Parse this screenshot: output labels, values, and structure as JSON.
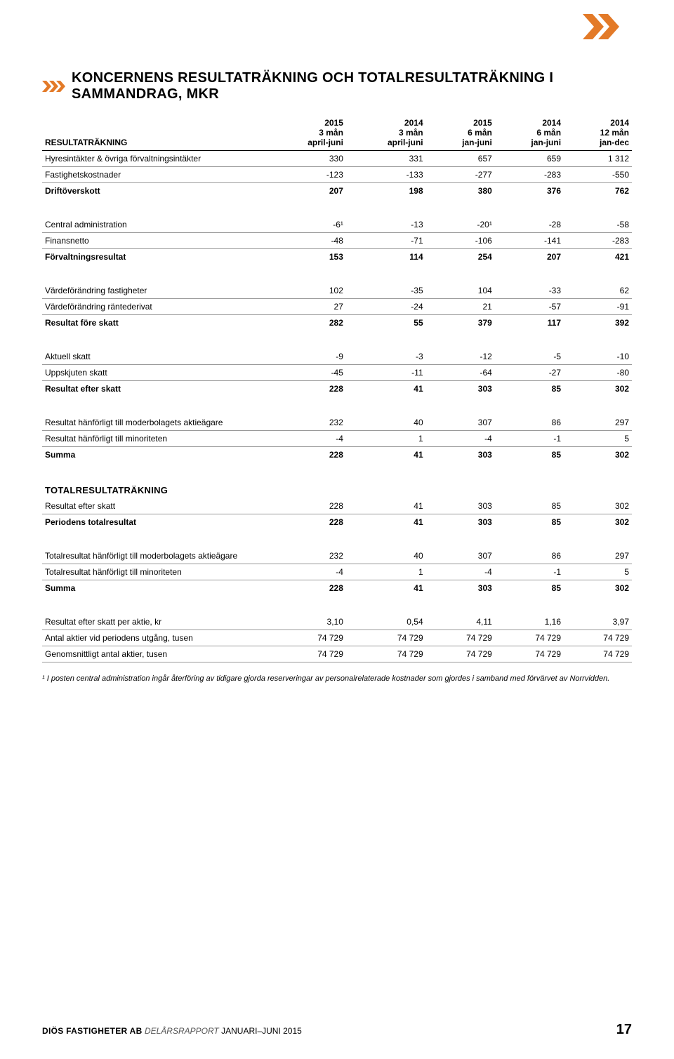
{
  "colors": {
    "accent": "#e37a28",
    "text": "#000000",
    "rule": "#999999",
    "rule_strong": "#000000",
    "muted": "#555555",
    "background": "#ffffff"
  },
  "title": "KONCERNENS RESULTATRÄKNING OCH TOTALRESULTATRÄKNING I SAMMANDRAG, MKR",
  "columns": [
    {
      "header": "RESULTATRÄKNING"
    },
    {
      "year": "2015",
      "period": "3 mån",
      "range": "april-juni"
    },
    {
      "year": "2014",
      "period": "3 mån",
      "range": "april-juni"
    },
    {
      "year": "2015",
      "period": "6 mån",
      "range": "jan-juni"
    },
    {
      "year": "2014",
      "period": "6 mån",
      "range": "jan-juni"
    },
    {
      "year": "2014",
      "period": "12 mån",
      "range": "jan-dec"
    }
  ],
  "rows": [
    {
      "type": "data",
      "label": "Hyresintäkter & övriga förvaltningsintäkter",
      "v": [
        "330",
        "331",
        "657",
        "659",
        "1 312"
      ],
      "line": true
    },
    {
      "type": "data",
      "label": "Fastighetskostnader",
      "v": [
        "-123",
        "-133",
        "-277",
        "-283",
        "-550"
      ],
      "line": true
    },
    {
      "type": "data",
      "label": "Driftöverskott",
      "v": [
        "207",
        "198",
        "380",
        "376",
        "762"
      ],
      "bold": true
    },
    {
      "type": "spacer"
    },
    {
      "type": "data",
      "label": "Central administration",
      "v": [
        "-6¹",
        "-13",
        "-20¹",
        "-28",
        "-58"
      ],
      "line": true
    },
    {
      "type": "data",
      "label": "Finansnetto",
      "v": [
        "-48",
        "-71",
        "-106",
        "-141",
        "-283"
      ],
      "line": true
    },
    {
      "type": "data",
      "label": "Förvaltningsresultat",
      "v": [
        "153",
        "114",
        "254",
        "207",
        "421"
      ],
      "bold": true
    },
    {
      "type": "spacer"
    },
    {
      "type": "data",
      "label": "Värdeförändring fastigheter",
      "v": [
        "102",
        "-35",
        "104",
        "-33",
        "62"
      ],
      "line": true
    },
    {
      "type": "data",
      "label": "Värdeförändring räntederivat",
      "v": [
        "27",
        "-24",
        "21",
        "-57",
        "-91"
      ],
      "line": true
    },
    {
      "type": "data",
      "label": "Resultat före skatt",
      "v": [
        "282",
        "55",
        "379",
        "117",
        "392"
      ],
      "bold": true
    },
    {
      "type": "spacer"
    },
    {
      "type": "data",
      "label": "Aktuell skatt",
      "v": [
        "-9",
        "-3",
        "-12",
        "-5",
        "-10"
      ],
      "line": true
    },
    {
      "type": "data",
      "label": "Uppskjuten skatt",
      "v": [
        "-45",
        "-11",
        "-64",
        "-27",
        "-80"
      ],
      "line": true
    },
    {
      "type": "data",
      "label": "Resultat efter skatt",
      "v": [
        "228",
        "41",
        "303",
        "85",
        "302"
      ],
      "bold": true
    },
    {
      "type": "spacer"
    },
    {
      "type": "data",
      "label": "Resultat hänförligt till moderbolagets aktieägare",
      "v": [
        "232",
        "40",
        "307",
        "86",
        "297"
      ],
      "line": true
    },
    {
      "type": "data",
      "label": "Resultat hänförligt till minoriteten",
      "v": [
        "-4",
        "1",
        "-4",
        "-1",
        "5"
      ],
      "line": true
    },
    {
      "type": "data",
      "label": "Summa",
      "v": [
        "228",
        "41",
        "303",
        "85",
        "302"
      ],
      "bold": true
    },
    {
      "type": "spacer"
    },
    {
      "type": "section",
      "label": "TOTALRESULTATRÄKNING"
    },
    {
      "type": "data",
      "label": "Resultat efter skatt",
      "v": [
        "228",
        "41",
        "303",
        "85",
        "302"
      ],
      "line": true
    },
    {
      "type": "data",
      "label": "Periodens totalresultat",
      "v": [
        "228",
        "41",
        "303",
        "85",
        "302"
      ],
      "bold": true
    },
    {
      "type": "spacer"
    },
    {
      "type": "data",
      "label": "Totalresultat hänförligt till moderbolagets aktieägare",
      "v": [
        "232",
        "40",
        "307",
        "86",
        "297"
      ],
      "line": true
    },
    {
      "type": "data",
      "label": "Totalresultat hänförligt till minoriteten",
      "v": [
        "-4",
        "1",
        "-4",
        "-1",
        "5"
      ],
      "line": true
    },
    {
      "type": "data",
      "label": "Summa",
      "v": [
        "228",
        "41",
        "303",
        "85",
        "302"
      ],
      "bold": true
    },
    {
      "type": "spacer"
    },
    {
      "type": "data",
      "label": "Resultat efter skatt per aktie, kr",
      "v": [
        "3,10",
        "0,54",
        "4,11",
        "1,16",
        "3,97"
      ],
      "line": true
    },
    {
      "type": "data",
      "label": "Antal aktier vid periodens utgång, tusen",
      "v": [
        "74 729",
        "74 729",
        "74 729",
        "74 729",
        "74 729"
      ],
      "line": true
    },
    {
      "type": "data",
      "label": "Genomsnittligt antal aktier, tusen",
      "v": [
        "74 729",
        "74 729",
        "74 729",
        "74 729",
        "74 729"
      ],
      "line": true
    }
  ],
  "footnote": "¹ I posten central administration ingår återföring av tidigare gjorda reserveringar av personalrelaterade kostnader som gjordes i samband med förvärvet av Norrvidden.",
  "footer": {
    "brand": "DIÖS FASTIGHETER AB",
    "report": "DELÅRSRAPPORT",
    "period": "JANUARI–JUNI 2015",
    "page": "17"
  }
}
